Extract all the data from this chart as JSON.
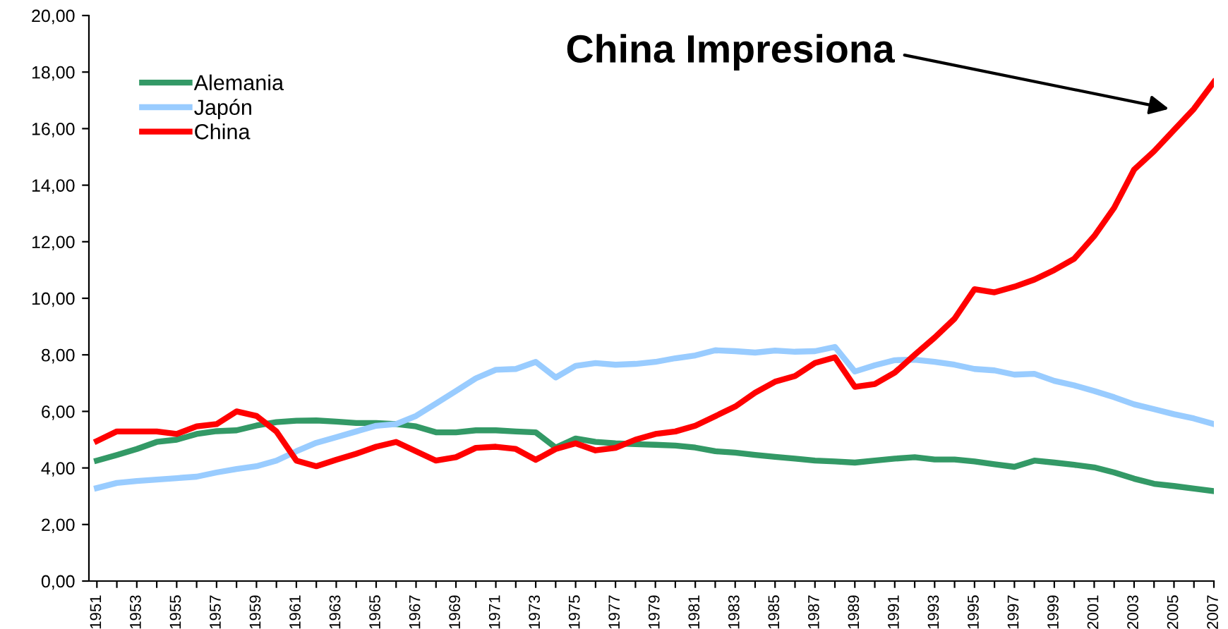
{
  "chart_data": {
    "type": "line",
    "categories": [
      "1951",
      null,
      "1953",
      null,
      "1955",
      null,
      "1957",
      null,
      "1959",
      null,
      "1961",
      null,
      "1963",
      null,
      "1965",
      null,
      "1967",
      null,
      "1969",
      null,
      "1971",
      null,
      "1973",
      null,
      "1975",
      null,
      "1977",
      null,
      "1979",
      null,
      "1981",
      null,
      "1983",
      null,
      "1985",
      null,
      "1987",
      null,
      "1989",
      null,
      "1991",
      null,
      "1993",
      null,
      "1995",
      null,
      "1997",
      null,
      "1999",
      null,
      "2001",
      null,
      "2003",
      null,
      "2005",
      null,
      "2007"
    ],
    "series": [
      {
        "name": "Alemania",
        "color": "#339966",
        "values": [
          4.26,
          4.46,
          4.67,
          4.92,
          5.0,
          5.2,
          5.3,
          5.33,
          5.5,
          5.62,
          5.67,
          5.68,
          5.64,
          5.59,
          5.59,
          5.55,
          5.47,
          5.26,
          5.26,
          5.33,
          5.33,
          5.29,
          5.26,
          4.72,
          5.04,
          4.92,
          4.87,
          4.84,
          4.82,
          4.79,
          4.72,
          4.59,
          4.54,
          4.46,
          4.39,
          4.33,
          4.26,
          4.23,
          4.19,
          4.26,
          4.33,
          4.38,
          4.3,
          4.3,
          4.23,
          4.13,
          4.04,
          4.26,
          4.19,
          4.11,
          4.02,
          3.84,
          3.62,
          3.44,
          3.36,
          3.27,
          3.18
        ]
      },
      {
        "name": "Japón",
        "color": "#99ccff",
        "values": [
          3.29,
          3.47,
          3.54,
          3.59,
          3.64,
          3.69,
          3.84,
          3.96,
          4.06,
          4.26,
          4.59,
          4.89,
          5.09,
          5.29,
          5.49,
          5.55,
          5.84,
          6.28,
          6.72,
          7.17,
          7.47,
          7.5,
          7.75,
          7.2,
          7.61,
          7.71,
          7.65,
          7.68,
          7.75,
          7.88,
          7.98,
          8.16,
          8.13,
          8.08,
          8.15,
          8.11,
          8.13,
          8.28,
          7.41,
          7.63,
          7.81,
          7.83,
          7.75,
          7.65,
          7.5,
          7.45,
          7.3,
          7.33,
          7.08,
          6.92,
          6.72,
          6.5,
          6.25,
          6.08,
          5.9,
          5.75,
          5.55
        ]
      },
      {
        "name": "China",
        "color": "#ff0000",
        "values": [
          4.95,
          5.29,
          5.29,
          5.29,
          5.2,
          5.47,
          5.55,
          6.0,
          5.84,
          5.29,
          4.26,
          4.06,
          4.29,
          4.5,
          4.75,
          4.92,
          4.59,
          4.26,
          4.38,
          4.71,
          4.75,
          4.67,
          4.29,
          4.67,
          4.87,
          4.62,
          4.71,
          5.0,
          5.2,
          5.29,
          5.49,
          5.83,
          6.17,
          6.66,
          7.05,
          7.25,
          7.71,
          7.91,
          6.87,
          6.97,
          7.37,
          8.0,
          8.61,
          9.28,
          10.32,
          10.21,
          10.41,
          10.66,
          11.0,
          11.4,
          12.2,
          13.2,
          14.55,
          15.2,
          15.95,
          16.7,
          17.65
        ]
      }
    ],
    "ylim": [
      0,
      20
    ],
    "yticks": [
      {
        "value": 0,
        "label": "0,00"
      },
      {
        "value": 2,
        "label": "2,00"
      },
      {
        "value": 4,
        "label": "4,00"
      },
      {
        "value": 6,
        "label": "6,00"
      },
      {
        "value": 8,
        "label": "8,00"
      },
      {
        "value": 10,
        "label": "10,00"
      },
      {
        "value": 12,
        "label": "12,00"
      },
      {
        "value": 14,
        "label": "14,00"
      },
      {
        "value": 16,
        "label": "16,00"
      },
      {
        "value": 18,
        "label": "18,00"
      },
      {
        "value": 20,
        "label": "20,00"
      }
    ],
    "annotations": [
      "China Impresiona"
    ],
    "grid": false,
    "legend": "top left",
    "marker": "none",
    "line_style": "solid"
  }
}
